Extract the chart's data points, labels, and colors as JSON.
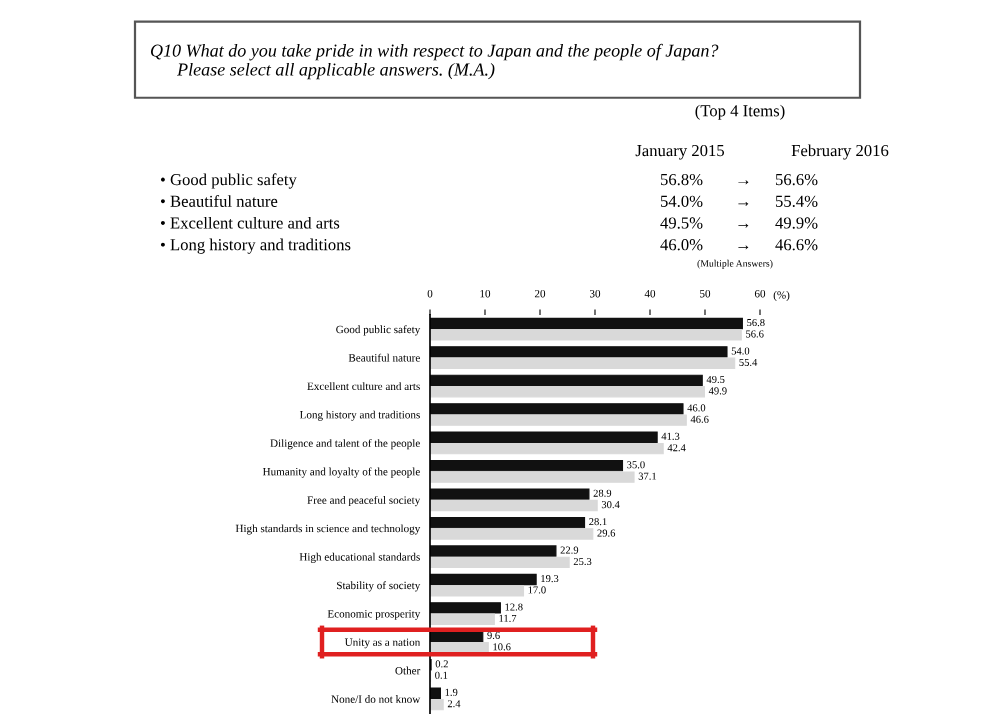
{
  "chart_data": {
    "type": "bar",
    "orientation": "horizontal",
    "title": "Q10 What do you take pride in with respect to Japan and the people of Japan?\n      Please select all applicable answers. (M.A.)",
    "categories": [
      "Good public safety",
      "Beautiful nature",
      "Excellent culture and arts",
      "Long history and traditions",
      "Diligence and talent of the people",
      "Humanity and loyalty of the people",
      "Free and peaceful society",
      "High standards in science and technology",
      "High educational standards",
      "Stability of society",
      "Economic prosperity",
      "Unity as a nation",
      "Other",
      "None/I do not know"
    ],
    "series": [
      {
        "color": "#111111",
        "values": [
          56.8,
          54.0,
          49.5,
          46.0,
          41.3,
          35.0,
          28.9,
          28.1,
          22.9,
          19.3,
          12.8,
          9.6,
          0.2,
          1.9
        ],
        "value_labels": [
          "56.8",
          "54.0",
          "49.5",
          "46.0",
          "41.3",
          "35.0",
          "28.9",
          "28.1",
          "22.9",
          "19.3",
          "12.8",
          "9.6",
          "0.2",
          "1.9"
        ]
      },
      {
        "color": "#d9d9d9",
        "values": [
          56.6,
          55.4,
          49.9,
          46.6,
          42.4,
          37.1,
          30.4,
          29.6,
          25.3,
          17.0,
          11.7,
          10.6,
          0.1,
          2.4
        ],
        "value_labels": [
          "56.6",
          "55.4",
          "49.9",
          "46.6",
          "42.4",
          "37.1",
          "30.4",
          "29.6",
          "25.3",
          "17.0",
          "11.7",
          "10.6",
          "0.1",
          "2.4"
        ]
      }
    ],
    "xlim": [
      0,
      60
    ],
    "xticks": [
      0,
      10,
      20,
      30,
      40,
      50,
      60
    ],
    "xlabel": "(%)",
    "legend": false,
    "grid": false,
    "annotations": [
      "(Top 4 Items)",
      "January 2015",
      "February 2016",
      "• Good public safety",
      "56.8%",
      "→",
      "56.6%",
      "• Beautiful nature",
      "54.0%",
      "→",
      "55.4%",
      "• Excellent culture and arts",
      "49.5%",
      "→",
      "49.9%",
      "• Long history and traditions",
      "46.0%",
      "→",
      "46.6%",
      "(Multiple Answers)"
    ]
  }
}
